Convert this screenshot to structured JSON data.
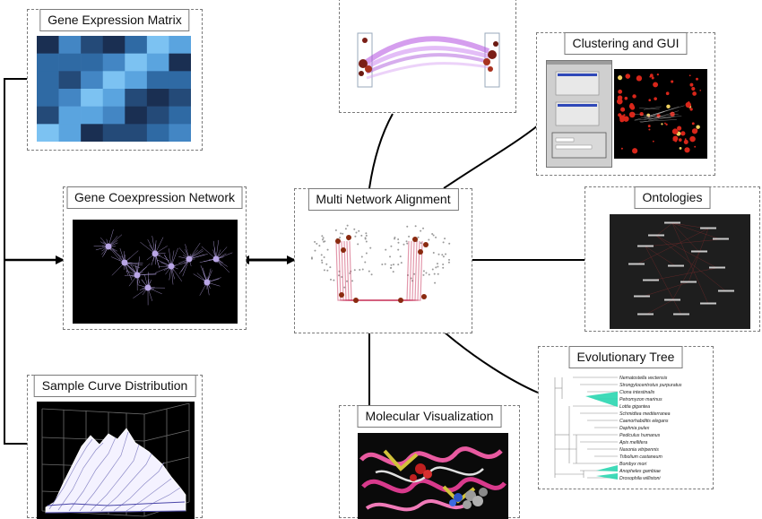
{
  "panels": {
    "gene_expression_matrix": {
      "title": "Gene Expression Matrix"
    },
    "gene_coexpression_network": {
      "title": "Gene Coexpression Network"
    },
    "sample_curve_distribution": {
      "title": "Sample Curve Distribution"
    },
    "multi_network_alignment": {
      "title": "Multi Network Alignment"
    },
    "clustering_and_gui": {
      "title": "Clustering and GUI"
    },
    "ontologies": {
      "title": "Ontologies"
    },
    "evolutionary_tree": {
      "title": "Evolutionary Tree"
    },
    "molecular_visualization": {
      "title": "Molecular Visualization"
    }
  },
  "tree_species": [
    "Nematostella vectensis",
    "Strongylocentrotus purpuratus",
    "Ciona intestinalis",
    "Petromyzon marinus",
    "Lottia gigantea",
    "Schmidtea mediterranea",
    "Caenorhabditis elegans",
    "Daphnia pulex",
    "Pediculus humanus",
    "Apis mellifera",
    "Nasonia vitripennis",
    "Tribolium castaneum",
    "Bombyx mori",
    "Anopheles gambiae",
    "Drosophila willistoni"
  ],
  "colors": {
    "border": "#7a7a7a",
    "network_bg": "#000000",
    "coexpression_nodes": "#b9a6e6",
    "alignment_links": "#c8325a",
    "tree_highlight": "#2ad6b0"
  }
}
